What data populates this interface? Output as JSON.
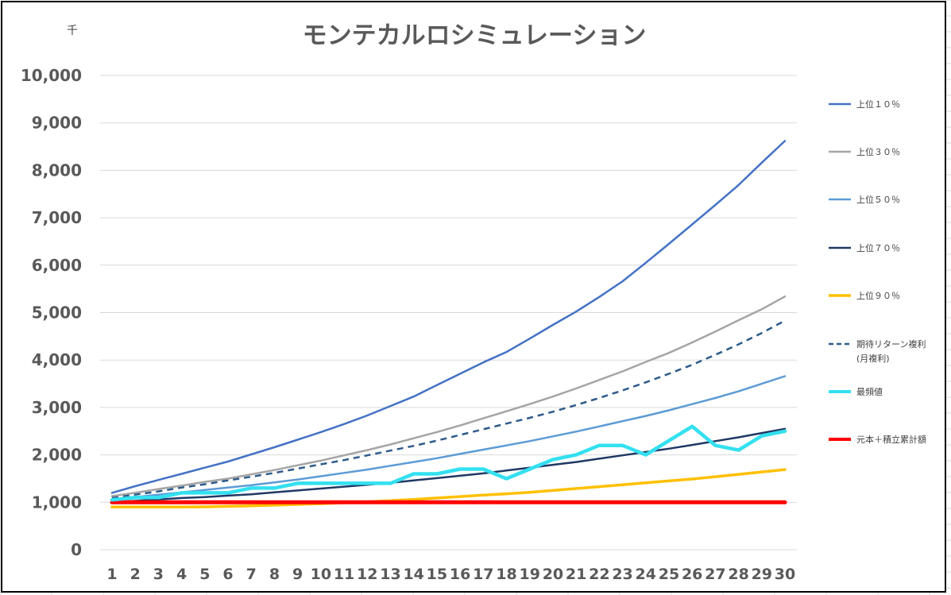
{
  "chart_data": {
    "type": "line",
    "title": "モンテカルロシミュレーション",
    "unit_label": "千",
    "x": [
      1,
      2,
      3,
      4,
      5,
      6,
      7,
      8,
      9,
      10,
      11,
      12,
      13,
      14,
      15,
      16,
      17,
      18,
      19,
      20,
      21,
      22,
      23,
      24,
      25,
      26,
      27,
      28,
      29,
      30
    ],
    "ylim": [
      0,
      10000
    ],
    "yticks": [
      0,
      1000,
      2000,
      3000,
      4000,
      5000,
      6000,
      7000,
      8000,
      9000,
      10000
    ],
    "ytick_labels": [
      "0",
      "1,000",
      "2,000",
      "3,000",
      "4,000",
      "5,000",
      "6,000",
      "7,000",
      "8,000",
      "9,000",
      "10,000"
    ],
    "grid": true,
    "legend_position": "right",
    "series": [
      {
        "name": "上位１０％",
        "color": "#4472c4",
        "dash": "solid",
        "width": 2.5,
        "values": [
          1200,
          1340,
          1470,
          1600,
          1730,
          1860,
          2010,
          2160,
          2320,
          2480,
          2650,
          2830,
          3030,
          3230,
          3470,
          3710,
          3950,
          4170,
          4450,
          4740,
          5020,
          5330,
          5660,
          6050,
          6450,
          6860,
          7270,
          7690,
          8160,
          8620
        ]
      },
      {
        "name": "上位３０％",
        "color": "#a5a5a5",
        "dash": "solid",
        "width": 2.5,
        "values": [
          1130,
          1200,
          1280,
          1350,
          1430,
          1500,
          1590,
          1680,
          1780,
          1880,
          1990,
          2100,
          2220,
          2350,
          2480,
          2620,
          2770,
          2920,
          3070,
          3230,
          3400,
          3580,
          3760,
          3960,
          4150,
          4370,
          4600,
          4840,
          5070,
          5340
        ]
      },
      {
        "name": "上位５０％",
        "color": "#5b9bd5",
        "dash": "solid",
        "width": 2.5,
        "values": [
          1050,
          1110,
          1160,
          1210,
          1260,
          1310,
          1360,
          1420,
          1480,
          1550,
          1620,
          1690,
          1770,
          1850,
          1930,
          2020,
          2110,
          2200,
          2290,
          2390,
          2490,
          2600,
          2710,
          2820,
          2940,
          3070,
          3200,
          3340,
          3500,
          3660
        ]
      },
      {
        "name": "上位７０％",
        "color": "#203864",
        "dash": "solid",
        "width": 2.5,
        "values": [
          1000,
          1030,
          1060,
          1090,
          1110,
          1140,
          1170,
          1210,
          1250,
          1290,
          1330,
          1370,
          1410,
          1460,
          1510,
          1560,
          1610,
          1670,
          1730,
          1790,
          1850,
          1920,
          1990,
          2060,
          2130,
          2210,
          2290,
          2370,
          2460,
          2550
        ]
      },
      {
        "name": "上位９０％",
        "color": "#ffc000",
        "dash": "solid",
        "width": 3.5,
        "values": [
          900,
          900,
          900,
          900,
          905,
          915,
          925,
          940,
          955,
          970,
          990,
          1010,
          1035,
          1060,
          1090,
          1120,
          1150,
          1180,
          1210,
          1250,
          1290,
          1330,
          1370,
          1410,
          1450,
          1490,
          1540,
          1590,
          1640,
          1690
        ]
      },
      {
        "name": "期待リターン複利",
        "name_line2": "(月複利)",
        "color": "#2e5b8a",
        "dash": "8 6",
        "width": 2.5,
        "values": [
          1090,
          1160,
          1230,
          1310,
          1380,
          1460,
          1540,
          1620,
          1710,
          1800,
          1890,
          1990,
          2090,
          2190,
          2300,
          2420,
          2540,
          2660,
          2780,
          2910,
          3050,
          3200,
          3360,
          3530,
          3710,
          3900,
          4110,
          4330,
          4570,
          4830
        ]
      },
      {
        "name": "最頻値",
        "color": "#33e0f0",
        "dash": "solid",
        "width": 4.5,
        "values": [
          1050,
          1100,
          1100,
          1200,
          1200,
          1200,
          1300,
          1300,
          1400,
          1400,
          1400,
          1400,
          1400,
          1600,
          1600,
          1700,
          1700,
          1500,
          1700,
          1900,
          2000,
          2200,
          2200,
          2000,
          2300,
          2600,
          2200,
          2100,
          2400,
          2500
        ]
      },
      {
        "name": "元本＋積立累計額",
        "color": "#ff0000",
        "dash": "solid",
        "width": 5,
        "values": [
          1000,
          1000,
          1000,
          1000,
          1000,
          1000,
          1000,
          1000,
          1000,
          1000,
          1000,
          1000,
          1000,
          1000,
          1000,
          1000,
          1000,
          1000,
          1000,
          1000,
          1000,
          1000,
          1000,
          1000,
          1000,
          1000,
          1000,
          1000,
          1000,
          1000
        ]
      }
    ]
  }
}
